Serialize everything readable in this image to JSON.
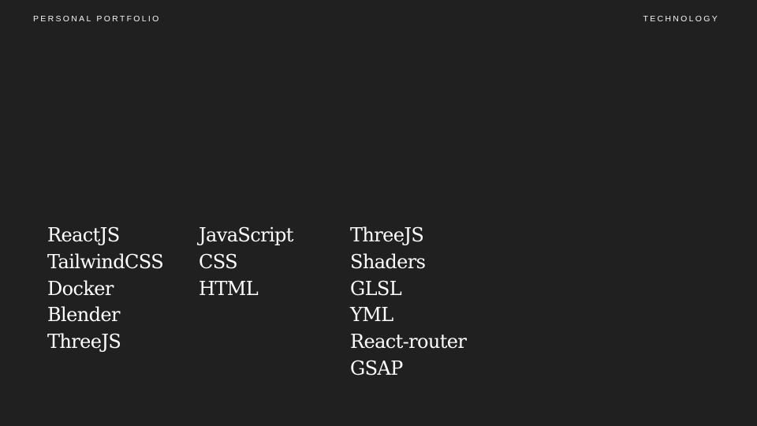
{
  "header": {
    "left_label": "PERSONAL PORTFOLIO",
    "right_label": "TECHNOLOGY"
  },
  "technologies": {
    "columns": [
      [
        "ReactJS",
        "TailwindCSS",
        "Docker",
        "Blender",
        "ThreeJS"
      ],
      [
        "JavaScript",
        "CSS",
        "HTML"
      ],
      [
        "ThreeJS",
        "Shaders",
        "GLSL",
        "YML",
        "React-router",
        "GSAP"
      ]
    ]
  },
  "colors": {
    "background": "#212021",
    "text": "#ffffff"
  }
}
